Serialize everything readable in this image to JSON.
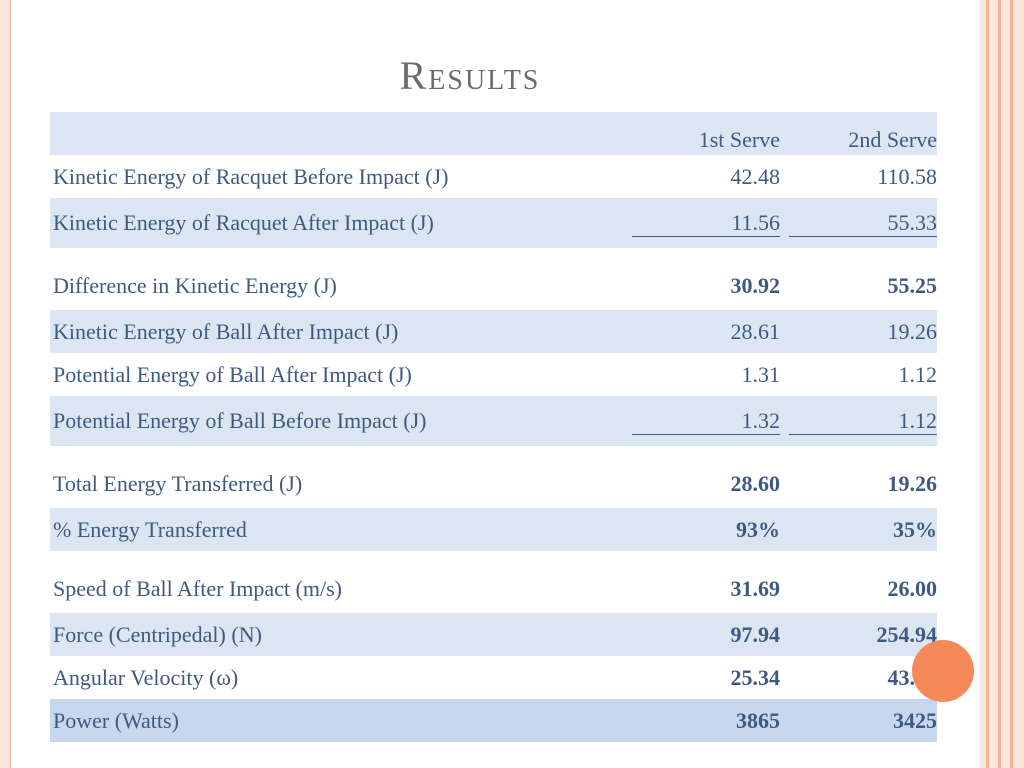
{
  "title": "Results",
  "columns": [
    "",
    "1st Serve",
    "2nd Serve"
  ],
  "rows": [
    {
      "label": "Kinetic Energy of Racquet Before Impact (J)",
      "v1": "42.48",
      "v2": "110.58"
    },
    {
      "label": "Kinetic Energy of Racquet After Impact (J)",
      "v1": "11.56",
      "v2": "55.33"
    },
    {
      "label": "Difference in Kinetic Energy  (J)",
      "v1": "30.92",
      "v2": "55.25"
    },
    {
      "label": "Kinetic Energy of Ball After Impact (J)",
      "v1": "28.61",
      "v2": "19.26"
    },
    {
      "label": "Potential Energy of Ball After Impact (J)",
      "v1": "1.31",
      "v2": "1.12"
    },
    {
      "label": "Potential Energy of Ball Before Impact (J)",
      "v1": "1.32",
      "v2": "1.12"
    },
    {
      "label": "Total Energy Transferred (J)",
      "v1": "28.60",
      "v2": "19.26"
    },
    {
      "label": "% Energy Transferred",
      "v1": "93%",
      "v2": "35%"
    },
    {
      "label": "Speed of Ball After Impact (m/s)",
      "v1": "31.69",
      "v2": "26.00"
    },
    {
      "label": "Force (Centripedal) (N)",
      "v1": "97.94",
      "v2": "254.94"
    },
    {
      "label": "Angular Velocity (ω)",
      "v1": "25.34",
      "v2": "43.63"
    },
    {
      "label": "Power (Watts)",
      "v1": "3865",
      "v2": "3425"
    }
  ],
  "colors": {
    "text": "#3d5a80",
    "band": "#dce6f2",
    "accent": "#f5895a"
  }
}
